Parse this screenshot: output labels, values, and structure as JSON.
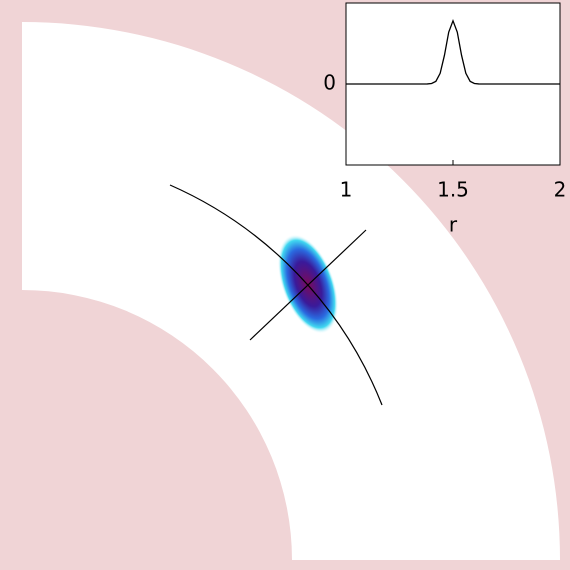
{
  "chart_data": {
    "type": "line",
    "xlabel": "r",
    "x": [
      1,
      1.02,
      1.04,
      1.06,
      1.08,
      1.1,
      1.12,
      1.14,
      1.16,
      1.18,
      1.2,
      1.22,
      1.24,
      1.26,
      1.28,
      1.3,
      1.32,
      1.34,
      1.36,
      1.38,
      1.4,
      1.42,
      1.44,
      1.46,
      1.48,
      1.5,
      1.52,
      1.54,
      1.56,
      1.58,
      1.6,
      1.62,
      1.64,
      1.66,
      1.68,
      1.7,
      1.72,
      1.74,
      1.76,
      1.78,
      1.8,
      1.82,
      1.84,
      1.86,
      1.88,
      1.9,
      1.92,
      1.94,
      1.96,
      1.98,
      2
    ],
    "series": [
      {
        "color": "#000000",
        "values": [
          0,
          0,
          0,
          0,
          0,
          0,
          0,
          0,
          0,
          0,
          0,
          0,
          0,
          0,
          0,
          0,
          0,
          0,
          0,
          0.001,
          0.006,
          0.033,
          0.132,
          0.354,
          0.64,
          0.78,
          0.64,
          0.354,
          0.132,
          0.033,
          0.006,
          0.001,
          0,
          0,
          0,
          0,
          0,
          0,
          0,
          0,
          0,
          0,
          0,
          0,
          0,
          0,
          0,
          0,
          0,
          0,
          0
        ]
      }
    ],
    "xlim": [
      1,
      2
    ],
    "xticks": [
      1,
      1.5,
      2
    ],
    "ylim": [
      -1,
      1
    ],
    "yticks": [
      0
    ]
  }
}
